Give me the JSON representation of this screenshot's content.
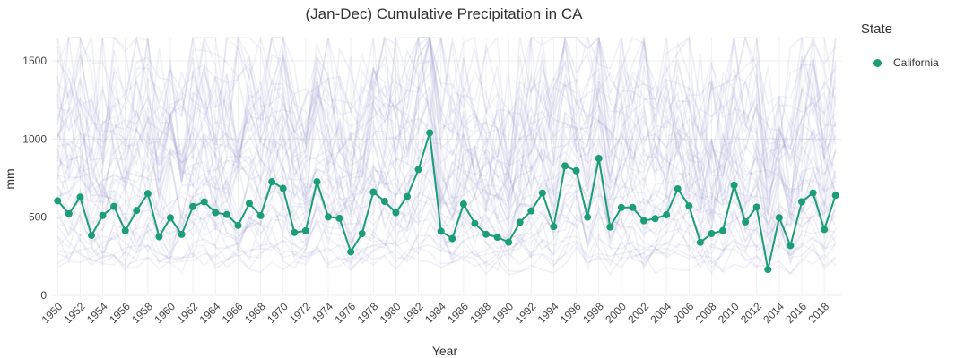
{
  "chart_data": {
    "type": "line",
    "title": "(Jan-Dec)  Cumulative Precipitation in CA",
    "xlabel": "Year",
    "ylabel": "mm",
    "xlim": [
      1949.5,
      2019.5
    ],
    "ylim": [
      -40,
      1650
    ],
    "yticks": [
      0,
      500,
      1000,
      1500
    ],
    "xticks": [
      1950,
      1952,
      1954,
      1956,
      1958,
      1960,
      1962,
      1964,
      1966,
      1968,
      1970,
      1972,
      1974,
      1976,
      1978,
      1980,
      1982,
      1984,
      1986,
      1988,
      1990,
      1992,
      1994,
      1996,
      1998,
      2000,
      2002,
      2004,
      2006,
      2008,
      2010,
      2012,
      2014,
      2016,
      2018
    ],
    "grid": true,
    "legend_title": "State",
    "legend_position": "right",
    "series": [
      {
        "name": "California",
        "color": "#1b9e77",
        "x": [
          1950,
          1951,
          1952,
          1953,
          1954,
          1955,
          1956,
          1957,
          1958,
          1959,
          1960,
          1961,
          1962,
          1963,
          1964,
          1965,
          1966,
          1967,
          1968,
          1969,
          1970,
          1971,
          1972,
          1973,
          1974,
          1975,
          1976,
          1977,
          1978,
          1979,
          1980,
          1981,
          1982,
          1983,
          1984,
          1985,
          1986,
          1987,
          1988,
          1989,
          1990,
          1991,
          1992,
          1993,
          1994,
          1995,
          1996,
          1997,
          1998,
          1999,
          2000,
          2001,
          2002,
          2003,
          2004,
          2005,
          2006,
          2007,
          2008,
          2009,
          2010,
          2011,
          2012,
          2013,
          2014,
          2015,
          2016,
          2017,
          2018,
          2019
        ],
        "values": [
          605,
          522,
          628,
          383,
          511,
          569,
          413,
          543,
          651,
          375,
          496,
          390,
          568,
          598,
          529,
          517,
          447,
          588,
          510,
          727,
          684,
          402,
          413,
          727,
          502,
          493,
          278,
          395,
          661,
          601,
          529,
          632,
          805,
          1040,
          410,
          363,
          584,
          460,
          391,
          372,
          340,
          467,
          540,
          655,
          440,
          828,
          797,
          500,
          876,
          437,
          562,
          562,
          477,
          491,
          515,
          681,
          572,
          339,
          395,
          414,
          705,
          470,
          565,
          165,
          497,
          318,
          599,
          655,
          421,
          640
        ]
      }
    ],
    "background_series_count": 48
  }
}
